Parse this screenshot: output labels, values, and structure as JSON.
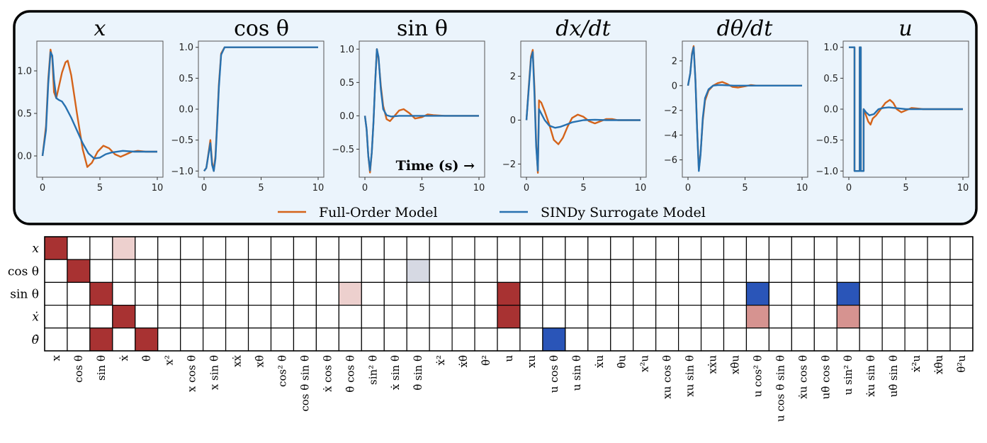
{
  "colors": {
    "full_order": "#d4631a",
    "sindy": "#2771b0",
    "panel_bg": "#ebf4fc",
    "positive_strong": "#a83232",
    "positive_light": "#edd0ce",
    "negative_strong": "#2a55b8",
    "negative_light": "#d6d9e3",
    "salmon": "#d69390"
  },
  "legend": {
    "full_order": "Full-Order Model",
    "sindy": "SINDy Surrogate Model"
  },
  "annotation": "Time (s) →",
  "chart_data": [
    {
      "type": "line",
      "title": "x",
      "xlim": [
        0,
        10
      ],
      "ylim": [
        -0.25,
        1.35
      ],
      "xticks": [
        0,
        5,
        10
      ],
      "yticks": [
        0.0,
        0.5,
        1.0
      ],
      "ytick_labels": [
        "0.0",
        "0.5",
        "1.0"
      ],
      "series": [
        {
          "name": "Full-Order Model",
          "x": [
            0,
            0.3,
            0.5,
            0.7,
            0.85,
            1.0,
            1.2,
            1.4,
            1.7,
            2.0,
            2.2,
            2.5,
            3.0,
            3.5,
            3.9,
            4.3,
            4.8,
            5.3,
            5.8,
            6.3,
            6.8,
            7.3,
            7.8,
            8.3,
            9,
            10
          ],
          "y": [
            0,
            0.35,
            0.9,
            1.25,
            1.15,
            0.75,
            0.68,
            0.8,
            0.98,
            1.1,
            1.12,
            0.95,
            0.5,
            0.08,
            -0.13,
            -0.08,
            0.05,
            0.12,
            0.09,
            0.02,
            -0.01,
            0.02,
            0.05,
            0.06,
            0.05,
            0.05
          ]
        },
        {
          "name": "SINDy Surrogate Model",
          "x": [
            0,
            0.3,
            0.5,
            0.7,
            0.85,
            1.0,
            1.2,
            1.4,
            1.7,
            2.0,
            2.5,
            3.0,
            3.5,
            4.0,
            4.5,
            5.0,
            5.5,
            6.0,
            7.0,
            8.0,
            9,
            10
          ],
          "y": [
            0,
            0.3,
            0.85,
            1.22,
            1.18,
            0.9,
            0.68,
            0.66,
            0.64,
            0.58,
            0.45,
            0.3,
            0.15,
            0.03,
            -0.03,
            -0.02,
            0.02,
            0.04,
            0.06,
            0.05,
            0.05,
            0.05
          ]
        }
      ]
    },
    {
      "type": "line",
      "title": "cos θ",
      "xlim": [
        0,
        10
      ],
      "ylim": [
        -1.1,
        1.1
      ],
      "xticks": [
        0,
        5,
        10
      ],
      "yticks": [
        -1.0,
        -0.5,
        0.0,
        0.5,
        1.0
      ],
      "ytick_labels": [
        "−1.0",
        "−0.5",
        "0.0",
        "0.5",
        "1.0"
      ],
      "series": [
        {
          "name": "Full-Order Model",
          "x": [
            0,
            0.2,
            0.4,
            0.55,
            0.7,
            0.85,
            1.0,
            1.15,
            1.3,
            1.5,
            1.8,
            2.5,
            4,
            6,
            8,
            10
          ],
          "y": [
            -1,
            -0.95,
            -0.7,
            -0.5,
            -0.85,
            -1.0,
            -0.75,
            -0.2,
            0.4,
            0.9,
            1.0,
            1.0,
            1.0,
            1.0,
            1.0,
            1.0
          ]
        },
        {
          "name": "SINDy Surrogate Model",
          "x": [
            0,
            0.2,
            0.4,
            0.55,
            0.7,
            0.85,
            1.0,
            1.15,
            1.3,
            1.5,
            1.8,
            2.5,
            4,
            6,
            8,
            10
          ],
          "y": [
            -1,
            -0.95,
            -0.72,
            -0.55,
            -0.9,
            -1.0,
            -0.8,
            -0.25,
            0.35,
            0.88,
            1.0,
            1.0,
            1.0,
            1.0,
            1.0,
            1.0
          ]
        }
      ]
    },
    {
      "type": "line",
      "title": "sin θ",
      "xlim": [
        0,
        10
      ],
      "ylim": [
        -0.92,
        1.12
      ],
      "xticks": [
        0,
        5,
        10
      ],
      "yticks": [
        -0.5,
        0.0,
        0.5,
        1.0
      ],
      "ytick_labels": [
        "−0.5",
        "0.0",
        "0.5",
        "1.0"
      ],
      "series": [
        {
          "name": "Full-Order Model",
          "x": [
            0,
            0.15,
            0.3,
            0.45,
            0.6,
            0.75,
            0.9,
            1.05,
            1.2,
            1.4,
            1.6,
            1.9,
            2.2,
            2.6,
            3.0,
            3.4,
            3.9,
            4.4,
            5,
            5.5,
            6,
            7,
            8,
            10
          ],
          "y": [
            0,
            -0.2,
            -0.6,
            -0.85,
            -0.55,
            -0.1,
            0.5,
            1.0,
            0.85,
            0.45,
            0.15,
            -0.05,
            -0.08,
            0.0,
            0.08,
            0.1,
            0.04,
            -0.04,
            -0.02,
            0.02,
            0.01,
            0,
            0,
            0
          ]
        },
        {
          "name": "SINDy Surrogate Model",
          "x": [
            0,
            0.15,
            0.3,
            0.45,
            0.6,
            0.75,
            0.9,
            1.05,
            1.2,
            1.4,
            1.6,
            1.9,
            2.3,
            3,
            4,
            5,
            6,
            8,
            10
          ],
          "y": [
            0,
            -0.2,
            -0.6,
            -0.82,
            -0.55,
            -0.1,
            0.5,
            1.0,
            0.88,
            0.4,
            0.1,
            0.01,
            -0.01,
            0,
            0,
            0,
            0,
            0,
            0
          ]
        }
      ]
    },
    {
      "type": "line",
      "title": "dx/dt",
      "xlim": [
        0,
        10
      ],
      "ylim": [
        -2.6,
        3.6
      ],
      "xticks": [
        0,
        5,
        10
      ],
      "yticks": [
        -2,
        0,
        2
      ],
      "ytick_labels": [
        "−2",
        "0",
        "2"
      ],
      "series": [
        {
          "name": "Full-Order Model",
          "x": [
            0,
            0.2,
            0.4,
            0.55,
            0.7,
            0.85,
            1.0,
            1.1,
            1.3,
            1.6,
            2.0,
            2.4,
            2.8,
            3.2,
            3.6,
            4.0,
            4.5,
            5.0,
            5.5,
            6.0,
            6.5,
            7,
            7.5,
            8,
            9,
            10
          ],
          "y": [
            0,
            1.5,
            2.9,
            3.2,
            1.5,
            -1.0,
            -2.4,
            0.9,
            0.8,
            0.4,
            -0.2,
            -0.9,
            -1.1,
            -0.8,
            -0.3,
            0.1,
            0.25,
            0.15,
            -0.05,
            -0.15,
            -0.05,
            0.05,
            0.05,
            0,
            0,
            0
          ]
        },
        {
          "name": "SINDy Surrogate Model",
          "x": [
            0,
            0.2,
            0.4,
            0.55,
            0.7,
            0.85,
            1.0,
            1.1,
            1.3,
            1.6,
            2.0,
            2.5,
            3.0,
            3.5,
            4.0,
            5.0,
            6.0,
            7.0,
            8.0,
            9,
            10
          ],
          "y": [
            0,
            1.4,
            2.8,
            3.1,
            1.2,
            -1.2,
            -2.3,
            0.5,
            0.3,
            0.0,
            -0.25,
            -0.35,
            -0.3,
            -0.2,
            -0.1,
            0.0,
            0.02,
            0,
            0,
            0,
            0
          ]
        }
      ]
    },
    {
      "type": "line",
      "title": "dθ/dt",
      "xlim": [
        0,
        10
      ],
      "ylim": [
        -7.4,
        3.6
      ],
      "xticks": [
        0,
        5,
        10
      ],
      "yticks": [
        -6,
        -4,
        -2,
        0,
        2
      ],
      "ytick_labels": [
        "−6",
        "−4",
        "−2",
        "0",
        "2"
      ],
      "series": [
        {
          "name": "Full-Order Model",
          "x": [
            0,
            0.2,
            0.35,
            0.5,
            0.65,
            0.8,
            0.95,
            1.1,
            1.3,
            1.5,
            1.8,
            2.2,
            2.6,
            3.0,
            3.4,
            3.9,
            4.4,
            5,
            5.5,
            6,
            7,
            8,
            10
          ],
          "y": [
            0,
            1.0,
            2.6,
            3.2,
            0.5,
            -3.5,
            -6.8,
            -5.5,
            -2.8,
            -1.2,
            -0.4,
            0.0,
            0.2,
            0.3,
            0.15,
            -0.1,
            -0.15,
            -0.05,
            0.05,
            0,
            0,
            0,
            0
          ]
        },
        {
          "name": "SINDy Surrogate Model",
          "x": [
            0,
            0.2,
            0.35,
            0.5,
            0.65,
            0.8,
            0.95,
            1.1,
            1.3,
            1.5,
            1.8,
            2.2,
            2.6,
            3.0,
            4,
            5,
            6,
            8,
            10
          ],
          "y": [
            0,
            1.0,
            2.5,
            3.1,
            0.4,
            -3.6,
            -6.9,
            -5.6,
            -2.6,
            -1.0,
            -0.3,
            0.0,
            0.05,
            0.05,
            0,
            0,
            0,
            0,
            0
          ]
        }
      ]
    },
    {
      "type": "line",
      "title": "u",
      "xlim": [
        0,
        10
      ],
      "ylim": [
        -1.1,
        1.1
      ],
      "xticks": [
        0,
        5,
        10
      ],
      "yticks": [
        -1.0,
        -0.5,
        0.0,
        0.5,
        1.0
      ],
      "ytick_labels": [
        "−1.0",
        "−0.5",
        "0.0",
        "0.5",
        "1.0"
      ],
      "series": [
        {
          "name": "Full-Order Model",
          "x": [
            0,
            0.5,
            0.5,
            0.95,
            0.95,
            1.05,
            1.05,
            1.3,
            1.3,
            1.5,
            1.7,
            1.9,
            2.1,
            2.4,
            2.8,
            3.2,
            3.6,
            3.9,
            4.2,
            4.6,
            5,
            5.5,
            6,
            6.5,
            7,
            8,
            10
          ],
          "y": [
            1,
            1,
            -1,
            -1,
            1,
            1,
            -1,
            -1,
            0.0,
            -0.1,
            -0.2,
            -0.25,
            -0.15,
            -0.1,
            0.0,
            0.1,
            0.15,
            0.1,
            0.0,
            -0.05,
            -0.02,
            0.02,
            0.01,
            0,
            0,
            0,
            0
          ]
        },
        {
          "name": "SINDy Surrogate Model",
          "x": [
            0,
            0.5,
            0.5,
            0.95,
            0.95,
            1.05,
            1.05,
            1.3,
            1.3,
            1.5,
            1.8,
            2.2,
            2.6,
            3.0,
            3.5,
            4,
            5,
            6,
            8,
            10
          ],
          "y": [
            1,
            1,
            -1,
            -1,
            1,
            1,
            -1,
            -1,
            0.0,
            -0.05,
            -0.1,
            -0.08,
            0.0,
            0.02,
            0.03,
            0.02,
            0,
            0,
            0,
            0
          ]
        }
      ]
    }
  ],
  "heatmap": {
    "type": "heatmap",
    "rows": [
      "x",
      "cos θ",
      "sin θ",
      "ẋ",
      "θ̇"
    ],
    "columns": [
      "x",
      "cos θ",
      "sin θ",
      "ẋ",
      "θ̇",
      "x²",
      "x cos θ",
      "x sin θ",
      "xẋ",
      "xθ̇",
      "cos² θ",
      "cos θ sin θ",
      "ẋ cos θ",
      "θ̇ cos θ",
      "sin² θ",
      "ẋ sin θ",
      "θ̇ sin θ",
      "ẋ²",
      "ẋθ̇",
      "θ̇²",
      "u",
      "xu",
      "u cos θ",
      "u sin θ",
      "ẋu",
      "θ̇u",
      "x²u",
      "xu cos θ",
      "xu sin θ",
      "xẋu",
      "xθ̇u",
      "u cos² θ",
      "u cos θ sin θ",
      "ẋu cos θ",
      "uθ̇ cos θ",
      "u sin² θ",
      "ẋu sin θ",
      "uθ̇ sin θ",
      "ẋ²u",
      "ẋθ̇u",
      "θ̇²u"
    ],
    "cells": [
      {
        "row": 0,
        "col": 0,
        "level": "positive_strong"
      },
      {
        "row": 0,
        "col": 3,
        "level": "positive_light"
      },
      {
        "row": 1,
        "col": 1,
        "level": "positive_strong"
      },
      {
        "row": 1,
        "col": 16,
        "level": "negative_light"
      },
      {
        "row": 2,
        "col": 2,
        "level": "positive_strong"
      },
      {
        "row": 2,
        "col": 13,
        "level": "positive_light"
      },
      {
        "row": 2,
        "col": 20,
        "level": "positive_strong"
      },
      {
        "row": 2,
        "col": 31,
        "level": "negative_strong"
      },
      {
        "row": 2,
        "col": 35,
        "level": "negative_strong"
      },
      {
        "row": 3,
        "col": 3,
        "level": "positive_strong"
      },
      {
        "row": 3,
        "col": 20,
        "level": "positive_strong"
      },
      {
        "row": 3,
        "col": 31,
        "level": "salmon"
      },
      {
        "row": 3,
        "col": 35,
        "level": "salmon"
      },
      {
        "row": 4,
        "col": 2,
        "level": "positive_strong"
      },
      {
        "row": 4,
        "col": 4,
        "level": "positive_strong"
      },
      {
        "row": 4,
        "col": 22,
        "level": "negative_strong"
      }
    ]
  }
}
